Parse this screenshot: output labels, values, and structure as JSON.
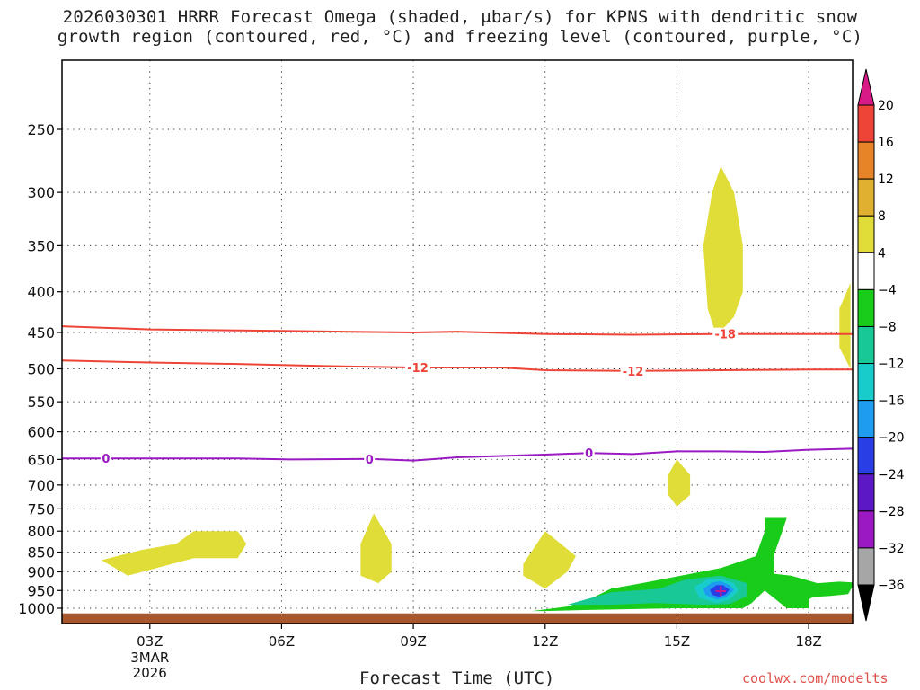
{
  "title_line1": "2026030301 HRRR Forecast Omega (shaded, μbar/s) for KPNS with dendritic snow",
  "title_line2": "growth region (contoured, red, °C) and freezing level (contoured, purple, °C)",
  "xlabel": "Forecast Time (UTC)",
  "credit": "coolwx.com/modelts",
  "chart_data": {
    "type": "heatmap",
    "title": "2026030301 HRRR Forecast Omega (shaded, μbar/s) for KPNS with dendritic snow growth region (contoured, red, °C) and freezing level (contoured, purple, °C)",
    "xlabel": "Forecast Time (UTC)",
    "ylabel": "",
    "x_start_hour_utc": 1,
    "x_end_hour_utc": 19,
    "x_ticks": [
      {
        "hour": 3,
        "label": "03Z",
        "sub": [
          "3MAR",
          "2026"
        ]
      },
      {
        "hour": 6,
        "label": "06Z"
      },
      {
        "hour": 9,
        "label": "09Z"
      },
      {
        "hour": 12,
        "label": "12Z"
      },
      {
        "hour": 15,
        "label": "15Z"
      },
      {
        "hour": 18,
        "label": "18Z"
      }
    ],
    "y_ticks": [
      250,
      300,
      350,
      400,
      450,
      500,
      550,
      600,
      650,
      700,
      750,
      800,
      850,
      900,
      950,
      1000
    ],
    "y_scale": "log",
    "y_reversed": true,
    "grid": true,
    "colorbar": {
      "levels": [
        -36,
        -32,
        -28,
        -24,
        -20,
        -16,
        -12,
        -8,
        -4,
        4,
        8,
        12,
        16,
        20
      ],
      "labels": [
        "20",
        "16",
        "12",
        "8",
        "4",
        "−4",
        "−8",
        "−12",
        "−16",
        "−20",
        "−24",
        "−28",
        "−32",
        "−36"
      ],
      "colors": [
        "#000000",
        "#a6a6a6",
        "#9a19c2",
        "#5d18c6",
        "#2a3ee6",
        "#1e9cf0",
        "#18cccc",
        "#18c895",
        "#19cc19",
        "#ffffff",
        "#e0dc38",
        "#e0b030",
        "#e88428",
        "#ee4438",
        "#d81a86"
      ]
    },
    "contours": [
      {
        "name": "-18",
        "color": "#ee4438",
        "points": [
          [
            1,
            442
          ],
          [
            3,
            446
          ],
          [
            6,
            448
          ],
          [
            9,
            450
          ],
          [
            10,
            449
          ],
          [
            12,
            452
          ],
          [
            14,
            453
          ],
          [
            16,
            452
          ],
          [
            18,
            452
          ],
          [
            19,
            452
          ]
        ],
        "labels": [
          {
            "hour": 16.1,
            "text": "-18"
          }
        ]
      },
      {
        "name": "-12",
        "color": "#ee4438",
        "points": [
          [
            1,
            488
          ],
          [
            3,
            491
          ],
          [
            5,
            493
          ],
          [
            7,
            496
          ],
          [
            9,
            498
          ],
          [
            11,
            498
          ],
          [
            12,
            502
          ],
          [
            14,
            503
          ],
          [
            16,
            502
          ],
          [
            18,
            501
          ],
          [
            19,
            501
          ]
        ],
        "labels": [
          {
            "hour": 9.1,
            "text": "-12"
          },
          {
            "hour": 14.0,
            "text": "-12"
          }
        ]
      },
      {
        "name": "0",
        "color": "#9a19c2",
        "points": [
          [
            1,
            648
          ],
          [
            3,
            648
          ],
          [
            5,
            648
          ],
          [
            6.2,
            650
          ],
          [
            8,
            649
          ],
          [
            9,
            652
          ],
          [
            10,
            646
          ],
          [
            12,
            641
          ],
          [
            13,
            638
          ],
          [
            14,
            640
          ],
          [
            15,
            635
          ],
          [
            16,
            635
          ],
          [
            17,
            636
          ],
          [
            18,
            632
          ],
          [
            19,
            630
          ]
        ],
        "labels": [
          {
            "hour": 2.0,
            "text": "0"
          },
          {
            "hour": 8.0,
            "text": "0"
          },
          {
            "hour": 13.0,
            "text": "0"
          }
        ]
      }
    ],
    "omega_regions": [
      {
        "value": 4,
        "color": "#e0dc38",
        "points": [
          [
            1.9,
            870
          ],
          [
            2.8,
            845
          ],
          [
            3.6,
            830
          ],
          [
            4.0,
            800
          ],
          [
            5.0,
            800
          ],
          [
            5.2,
            830
          ],
          [
            5.0,
            865
          ],
          [
            4.0,
            865
          ],
          [
            3.0,
            895
          ],
          [
            2.5,
            910
          ]
        ]
      },
      {
        "value": 4,
        "color": "#e0dc38",
        "points": [
          [
            7.8,
            830
          ],
          [
            8.1,
            760
          ],
          [
            8.5,
            830
          ],
          [
            8.5,
            900
          ],
          [
            8.2,
            930
          ],
          [
            7.8,
            910
          ]
        ]
      },
      {
        "value": 4,
        "color": "#e0dc38",
        "points": [
          [
            11.5,
            880
          ],
          [
            12.0,
            800
          ],
          [
            12.7,
            860
          ],
          [
            12.5,
            900
          ],
          [
            12.0,
            945
          ],
          [
            11.5,
            910
          ]
        ]
      },
      {
        "value": 4,
        "color": "#e0dc38",
        "points": [
          [
            14.8,
            680
          ],
          [
            15.0,
            650
          ],
          [
            15.3,
            680
          ],
          [
            15.3,
            720
          ],
          [
            15.0,
            745
          ],
          [
            14.8,
            720
          ]
        ]
      },
      {
        "value": 4,
        "color": "#e0dc38",
        "points": [
          [
            15.6,
            350
          ],
          [
            15.8,
            300
          ],
          [
            16.0,
            278
          ],
          [
            16.3,
            300
          ],
          [
            16.5,
            350
          ],
          [
            16.5,
            400
          ],
          [
            16.3,
            430
          ],
          [
            15.9,
            455
          ],
          [
            15.7,
            420
          ]
        ]
      },
      {
        "value": 4,
        "color": "#e0dc38",
        "points": [
          [
            18.7,
            420
          ],
          [
            18.95,
            390
          ],
          [
            18.95,
            500
          ],
          [
            18.7,
            470
          ]
        ]
      },
      {
        "value": -4,
        "color": "#19cc19",
        "points": [
          [
            11.7,
            1008
          ],
          [
            12.5,
            995
          ],
          [
            13.0,
            975
          ],
          [
            13.5,
            945
          ],
          [
            14.2,
            930
          ],
          [
            15.0,
            912
          ],
          [
            16.0,
            890
          ],
          [
            16.8,
            860
          ],
          [
            17.0,
            800
          ],
          [
            17.0,
            770
          ],
          [
            17.5,
            770
          ],
          [
            17.4,
            800
          ],
          [
            17.2,
            860
          ],
          [
            17.2,
            905
          ],
          [
            17.6,
            910
          ],
          [
            17.9,
            920
          ],
          [
            18.2,
            930
          ],
          [
            18.7,
            926
          ],
          [
            19.0,
            928
          ],
          [
            19.0,
            938
          ],
          [
            18.9,
            960
          ],
          [
            18.5,
            965
          ],
          [
            18.1,
            968
          ],
          [
            18.0,
            975
          ],
          [
            18.0,
            1000
          ],
          [
            17.5,
            1000
          ],
          [
            17.2,
            970
          ],
          [
            17.0,
            950
          ],
          [
            16.7,
            985
          ],
          [
            16.5,
            1000
          ],
          [
            15.0,
            1000
          ],
          [
            13.0,
            1005
          ],
          [
            12.0,
            1008
          ]
        ]
      },
      {
        "value": -8,
        "color": "#18c895",
        "points": [
          [
            12.5,
            990
          ],
          [
            13.5,
            955
          ],
          [
            14.6,
            945
          ],
          [
            15.2,
            920
          ],
          [
            16.0,
            910
          ],
          [
            16.6,
            930
          ],
          [
            16.6,
            965
          ],
          [
            16.2,
            988
          ],
          [
            15.6,
            990
          ],
          [
            14.5,
            985
          ],
          [
            13.5,
            990
          ]
        ]
      },
      {
        "value": -12,
        "color": "#18cccc",
        "points": [
          [
            15.4,
            940
          ],
          [
            15.7,
            920
          ],
          [
            16.0,
            918
          ],
          [
            16.3,
            930
          ],
          [
            16.4,
            950
          ],
          [
            16.2,
            975
          ],
          [
            15.9,
            985
          ],
          [
            15.5,
            970
          ]
        ]
      },
      {
        "value": -16,
        "color": "#1e9cf0",
        "points": [
          [
            15.6,
            945
          ],
          [
            15.8,
            928
          ],
          [
            16.0,
            925
          ],
          [
            16.2,
            935
          ],
          [
            16.3,
            950
          ],
          [
            16.1,
            970
          ],
          [
            15.9,
            975
          ],
          [
            15.65,
            962
          ]
        ]
      },
      {
        "value": -20,
        "color": "#2a3ee6",
        "points": [
          [
            15.75,
            948
          ],
          [
            15.9,
            935
          ],
          [
            16.05,
            935
          ],
          [
            16.2,
            948
          ],
          [
            16.1,
            962
          ],
          [
            15.95,
            967
          ],
          [
            15.8,
            962
          ]
        ]
      }
    ],
    "minimum_marker": {
      "hour": 16.0,
      "pressure": 950,
      "symbol": "+"
    },
    "terrain_band": {
      "from_pressure": 1015,
      "color": "#a8572c"
    }
  }
}
